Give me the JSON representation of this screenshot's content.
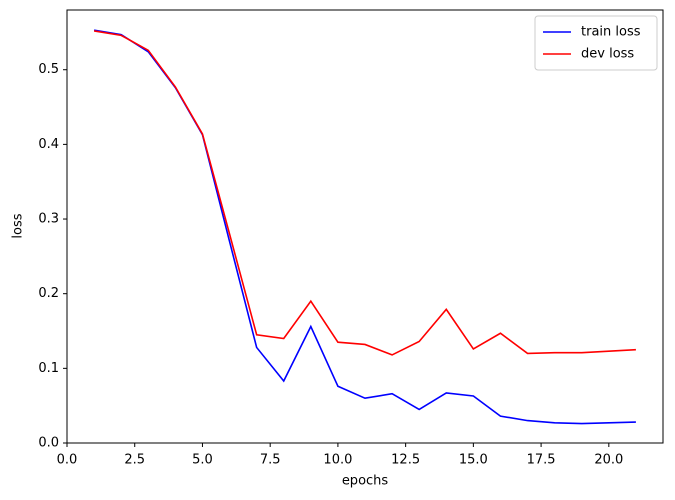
{
  "chart_data": {
    "type": "line",
    "xlabel": "epochs",
    "ylabel": "loss",
    "x": [
      1,
      2,
      3,
      4,
      5,
      6,
      7,
      8,
      9,
      10,
      11,
      12,
      13,
      14,
      15,
      16,
      17,
      18,
      19,
      20,
      21
    ],
    "series": [
      {
        "name": "train loss",
        "color": "#0000ff",
        "values": [
          0.553,
          0.547,
          0.524,
          0.476,
          0.413,
          0.27,
          0.128,
          0.083,
          0.156,
          0.076,
          0.06,
          0.066,
          0.045,
          0.067,
          0.063,
          0.036,
          0.03,
          0.027,
          0.026,
          0.027,
          0.028
        ]
      },
      {
        "name": "dev loss",
        "color": "#ff0000",
        "values": [
          0.552,
          0.546,
          0.526,
          0.477,
          0.414,
          0.28,
          0.145,
          0.14,
          0.19,
          0.135,
          0.132,
          0.118,
          0.136,
          0.179,
          0.126,
          0.147,
          0.12,
          0.121,
          0.121,
          0.123,
          0.125
        ]
      }
    ],
    "xlim": [
      0,
      22
    ],
    "ylim": [
      0,
      0.58
    ],
    "xticks": [
      {
        "value": 0,
        "label": "0.0"
      },
      2.5,
      {
        "value": 5,
        "label": "5.0"
      },
      7.5,
      {
        "value": 10,
        "label": "10.0"
      },
      12.5,
      {
        "value": 15,
        "label": "15.0"
      },
      17.5,
      {
        "value": 20,
        "label": "20.0"
      }
    ],
    "yticks": [
      {
        "value": 0,
        "label": "0.0"
      },
      0.1,
      0.2,
      0.3,
      0.4,
      0.5
    ],
    "legend": "upper right",
    "grid": false
  }
}
